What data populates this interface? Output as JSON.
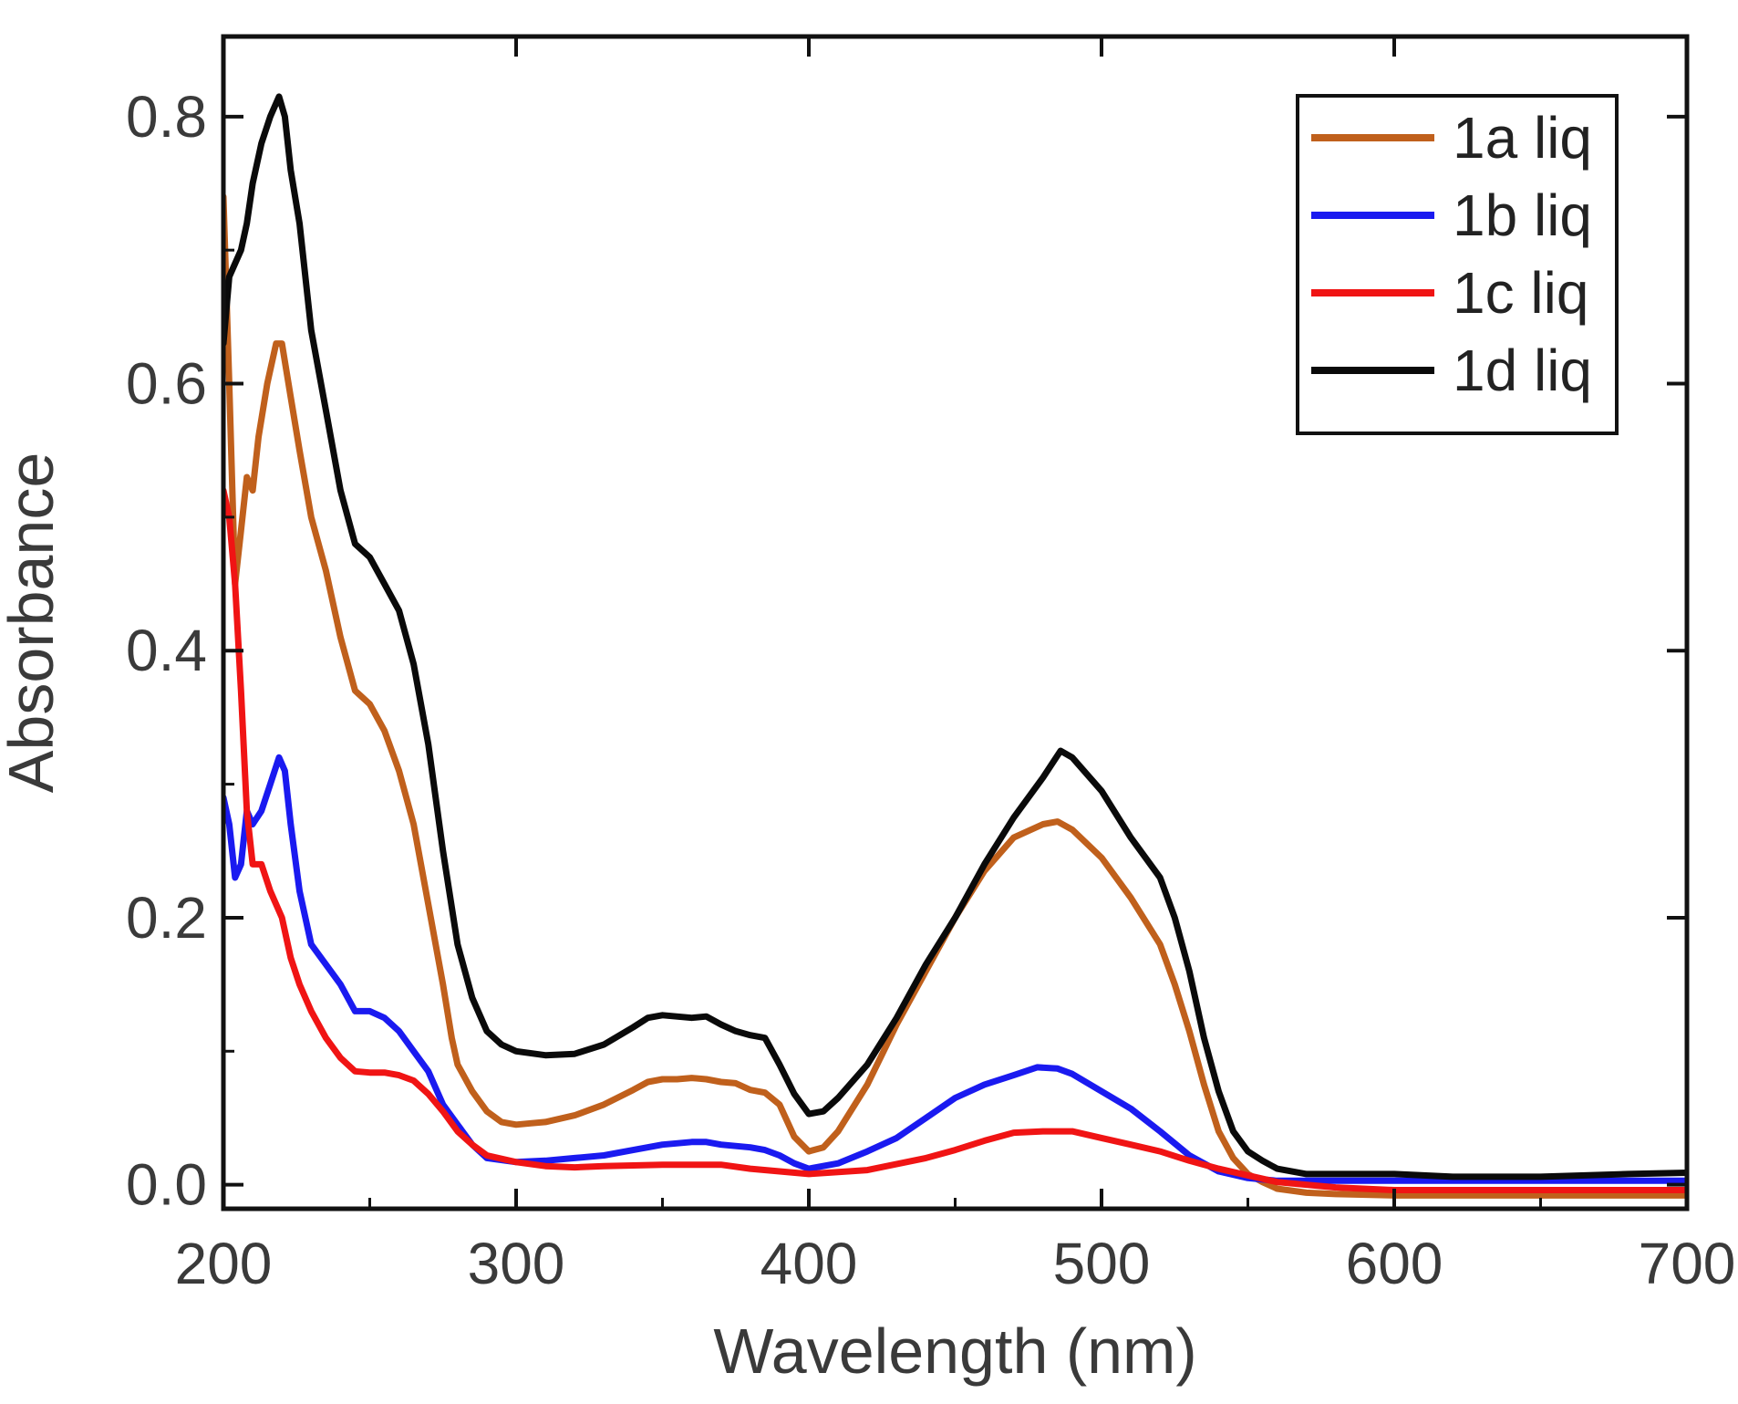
{
  "chart_data": {
    "type": "line",
    "title": "",
    "xlabel": "Wavelength (nm)",
    "ylabel": "Absorbance",
    "xlim": [
      200,
      700
    ],
    "ylim": [
      -0.018,
      0.86
    ],
    "xticks": [
      200,
      300,
      400,
      500,
      600,
      700
    ],
    "xtick_labels": [
      "200",
      "300",
      "400",
      "500",
      "600",
      "700"
    ],
    "yticks": [
      0.0,
      0.2,
      0.4,
      0.6,
      0.8
    ],
    "ytick_labels": [
      "0.0",
      "0.2",
      "0.4",
      "0.6",
      "0.8"
    ],
    "legend_position": "top-right",
    "grid": false,
    "series": [
      {
        "name": "1a liq",
        "color": "#c0601c",
        "x": [
          200,
          202,
          204,
          206,
          208,
          210,
          212,
          215,
          218,
          220,
          223,
          226,
          230,
          235,
          240,
          245,
          250,
          255,
          260,
          265,
          270,
          275,
          278,
          280,
          285,
          290,
          295,
          300,
          305,
          310,
          320,
          330,
          340,
          345,
          350,
          355,
          360,
          365,
          370,
          375,
          380,
          385,
          390,
          395,
          400,
          405,
          410,
          420,
          430,
          440,
          450,
          460,
          470,
          480,
          485,
          490,
          500,
          510,
          520,
          525,
          530,
          535,
          540,
          545,
          550,
          555,
          560,
          570,
          580,
          600,
          620,
          640,
          660,
          680,
          700
        ],
        "y": [
          0.74,
          0.6,
          0.45,
          0.49,
          0.53,
          0.52,
          0.56,
          0.6,
          0.63,
          0.63,
          0.59,
          0.55,
          0.5,
          0.46,
          0.41,
          0.37,
          0.36,
          0.34,
          0.31,
          0.27,
          0.21,
          0.15,
          0.11,
          0.09,
          0.07,
          0.055,
          0.047,
          0.045,
          0.046,
          0.047,
          0.052,
          0.06,
          0.071,
          0.077,
          0.079,
          0.079,
          0.08,
          0.079,
          0.077,
          0.076,
          0.071,
          0.069,
          0.06,
          0.036,
          0.025,
          0.028,
          0.04,
          0.075,
          0.12,
          0.16,
          0.2,
          0.235,
          0.26,
          0.27,
          0.272,
          0.266,
          0.245,
          0.215,
          0.18,
          0.15,
          0.115,
          0.075,
          0.04,
          0.02,
          0.008,
          0.002,
          -0.003,
          -0.006,
          -0.007,
          -0.008,
          -0.008,
          -0.008,
          -0.008,
          -0.008,
          -0.008
        ]
      },
      {
        "name": "1b liq",
        "color": "#1a1af0",
        "x": [
          200,
          202,
          204,
          206,
          208,
          210,
          213,
          216,
          219,
          221,
          223,
          226,
          230,
          235,
          240,
          245,
          250,
          255,
          260,
          265,
          270,
          275,
          280,
          285,
          290,
          300,
          310,
          320,
          330,
          340,
          350,
          360,
          365,
          370,
          380,
          385,
          390,
          395,
          400,
          410,
          420,
          430,
          440,
          450,
          460,
          470,
          478,
          485,
          490,
          500,
          510,
          520,
          530,
          540,
          550,
          560,
          580,
          600,
          650,
          700
        ],
        "y": [
          0.29,
          0.27,
          0.23,
          0.24,
          0.28,
          0.27,
          0.28,
          0.3,
          0.32,
          0.31,
          0.27,
          0.22,
          0.18,
          0.165,
          0.15,
          0.13,
          0.13,
          0.125,
          0.115,
          0.1,
          0.085,
          0.06,
          0.045,
          0.03,
          0.02,
          0.017,
          0.018,
          0.02,
          0.022,
          0.026,
          0.03,
          0.032,
          0.032,
          0.03,
          0.028,
          0.026,
          0.022,
          0.016,
          0.012,
          0.016,
          0.025,
          0.035,
          0.05,
          0.065,
          0.075,
          0.082,
          0.088,
          0.087,
          0.083,
          0.07,
          0.057,
          0.04,
          0.022,
          0.01,
          0.005,
          0.003,
          0.003,
          0.003,
          0.003,
          0.003
        ]
      },
      {
        "name": "1c liq",
        "color": "#f01414",
        "x": [
          200,
          202,
          204,
          206,
          208,
          210,
          213,
          216,
          220,
          223,
          226,
          230,
          235,
          240,
          245,
          250,
          255,
          260,
          265,
          270,
          275,
          280,
          285,
          290,
          300,
          310,
          320,
          330,
          350,
          370,
          380,
          390,
          400,
          420,
          440,
          450,
          460,
          470,
          480,
          490,
          500,
          510,
          520,
          530,
          540,
          550,
          560,
          580,
          600,
          650,
          700
        ],
        "y": [
          0.52,
          0.5,
          0.45,
          0.37,
          0.28,
          0.24,
          0.24,
          0.22,
          0.2,
          0.17,
          0.15,
          0.13,
          0.11,
          0.095,
          0.085,
          0.084,
          0.084,
          0.082,
          0.078,
          0.068,
          0.055,
          0.04,
          0.03,
          0.022,
          0.017,
          0.014,
          0.013,
          0.014,
          0.015,
          0.015,
          0.012,
          0.01,
          0.008,
          0.011,
          0.02,
          0.026,
          0.033,
          0.039,
          0.04,
          0.04,
          0.035,
          0.03,
          0.025,
          0.018,
          0.012,
          0.007,
          0.002,
          -0.002,
          -0.004,
          -0.004,
          -0.004
        ]
      },
      {
        "name": "1d liq",
        "color": "#0a0a0a",
        "x": [
          200,
          202,
          204,
          206,
          208,
          210,
          213,
          216,
          219,
          221,
          223,
          226,
          230,
          235,
          240,
          245,
          250,
          255,
          260,
          265,
          270,
          275,
          280,
          285,
          290,
          295,
          300,
          310,
          320,
          330,
          340,
          345,
          350,
          360,
          365,
          370,
          375,
          380,
          385,
          390,
          395,
          400,
          405,
          410,
          420,
          430,
          440,
          450,
          460,
          470,
          480,
          486,
          490,
          500,
          510,
          520,
          525,
          530,
          535,
          540,
          545,
          550,
          555,
          560,
          570,
          580,
          600,
          620,
          650,
          680,
          700
        ],
        "y": [
          0.63,
          0.68,
          0.69,
          0.7,
          0.72,
          0.75,
          0.78,
          0.8,
          0.815,
          0.8,
          0.76,
          0.72,
          0.64,
          0.58,
          0.52,
          0.48,
          0.47,
          0.45,
          0.43,
          0.39,
          0.33,
          0.25,
          0.18,
          0.14,
          0.115,
          0.105,
          0.1,
          0.097,
          0.098,
          0.105,
          0.118,
          0.125,
          0.127,
          0.125,
          0.126,
          0.12,
          0.115,
          0.112,
          0.11,
          0.09,
          0.068,
          0.053,
          0.055,
          0.065,
          0.09,
          0.125,
          0.165,
          0.2,
          0.24,
          0.275,
          0.305,
          0.325,
          0.32,
          0.295,
          0.26,
          0.23,
          0.2,
          0.16,
          0.11,
          0.07,
          0.04,
          0.025,
          0.018,
          0.012,
          0.008,
          0.008,
          0.008,
          0.006,
          0.006,
          0.008,
          0.009
        ]
      }
    ]
  }
}
